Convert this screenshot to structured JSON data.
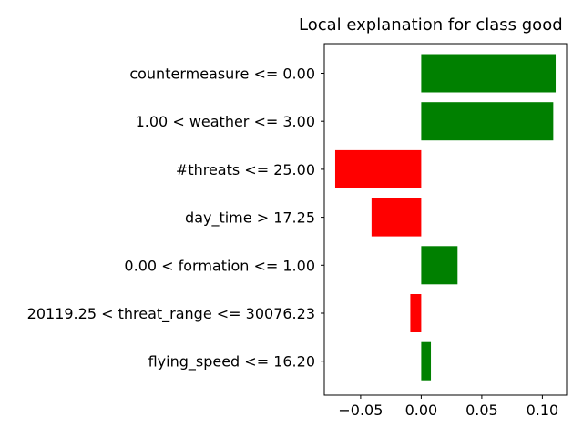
{
  "chart_data": {
    "type": "bar",
    "orientation": "horizontal",
    "title": "Local explanation for class good",
    "xlabel": "",
    "ylabel": "",
    "xlim": [
      -0.08,
      0.12
    ],
    "xticks": [
      -0.05,
      0.0,
      0.05,
      0.1
    ],
    "xtick_labels": [
      "−0.05",
      "0.00",
      "0.05",
      "0.10"
    ],
    "grid": false,
    "positive_color": "#008000",
    "negative_color": "#ff0000",
    "categories": [
      "countermeasure <= 0.00",
      "1.00 < weather <= 3.00",
      "#threats <= 25.00",
      "day_time > 17.25",
      "0.00 < formation <= 1.00",
      "20119.25 < threat_range <= 30076.23",
      "flying_speed <= 16.20"
    ],
    "values": [
      0.111,
      0.109,
      -0.071,
      -0.041,
      0.03,
      -0.009,
      0.008
    ]
  }
}
